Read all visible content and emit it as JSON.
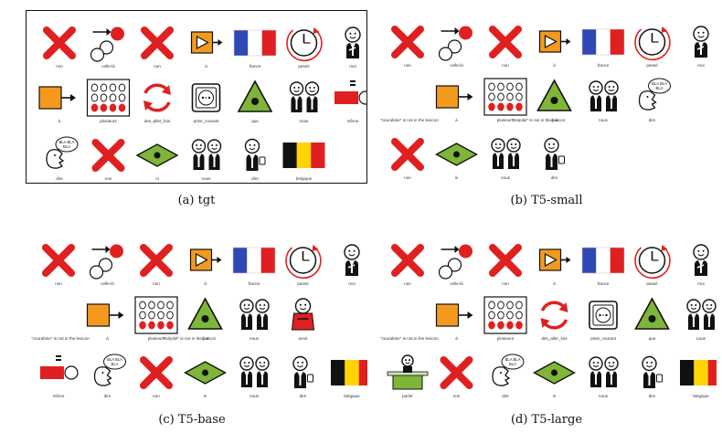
{
  "panels": [
    {
      "id": "tgt",
      "caption": "(a) tgt",
      "boxed": true,
      "rows": [
        [
          {
            "icon": "red-x-icon",
            "label": "non"
          },
          {
            "icon": "dots-arrow-icon",
            "label": "celle-là"
          },
          {
            "icon": "red-x-icon",
            "label": "non"
          },
          {
            "icon": "play-arrow-icon",
            "label": "à"
          },
          {
            "icon": "flag-france-icon",
            "label": "france"
          },
          {
            "icon": "clock-icon",
            "label": "passé"
          },
          {
            "icon": "person-icon",
            "label": "moi"
          }
        ],
        [
          {
            "icon": "orange-square-arrow-icon",
            "label": "à"
          },
          {
            "icon": "dots-grid-icon",
            "label": "plusieurs"
          },
          {
            "icon": "red-cycle-icon",
            "label": "des_aller_fois"
          },
          {
            "icon": "power-outlet-icon",
            "label": "prise_courant"
          },
          {
            "icon": "green-triangle-icon",
            "label": "que"
          },
          {
            "icon": "two-people-icon",
            "label": "nous"
          },
          {
            "icon": "equals-blocks-icon",
            "label": "même"
          }
        ],
        [
          {
            "icon": "speech-head-icon",
            "label": "dire"
          },
          {
            "icon": "red-x-icon",
            "label": "non"
          },
          {
            "icon": "green-diamond-icon",
            "label": "ni"
          },
          {
            "icon": "two-people-icon",
            "label": "nous"
          },
          {
            "icon": "person-phone-icon",
            "label": "dire"
          },
          {
            "icon": "flag-belgium-icon",
            "label": "belgique"
          }
        ]
      ],
      "notes": []
    },
    {
      "id": "t5-small",
      "caption": "(b) T5-small",
      "boxed": false,
      "rows": [
        [
          {
            "icon": "red-x-icon",
            "label": "non"
          },
          {
            "icon": "dots-arrow-icon",
            "label": "celle-là"
          },
          {
            "icon": "red-x-icon",
            "label": "non"
          },
          {
            "icon": "play-arrow-icon",
            "label": "à"
          },
          {
            "icon": "flag-france-icon",
            "label": "france"
          },
          {
            "icon": "clock-icon",
            "label": "passé"
          },
          {
            "icon": "person-icon",
            "label": "moi"
          }
        ],
        [
          {
            "icon": "orange-square-arrow-icon",
            "label": "à"
          },
          {
            "icon": "dots-grid-icon",
            "label": "plusieurs"
          },
          {
            "icon": "green-triangle-icon",
            "label": "que"
          },
          {
            "icon": "two-people-icon",
            "label": "nous"
          },
          {
            "icon": "speech-head-icon",
            "label": "dire"
          }
        ],
        [
          {
            "icon": "red-x-icon",
            "label": "non"
          },
          {
            "icon": "green-diamond-icon",
            "label": "ni"
          },
          {
            "icon": "two-people-icon",
            "label": "nous"
          },
          {
            "icon": "person-phone-icon",
            "label": "dire"
          }
        ]
      ],
      "notes": [
        "\"courabine\" is not in the lexicon",
        "\"mépitié\" is not in the lexicon"
      ]
    },
    {
      "id": "t5-base",
      "caption": "(c) T5-base",
      "boxed": false,
      "rows": [
        [
          {
            "icon": "red-x-icon",
            "label": "non"
          },
          {
            "icon": "dots-arrow-icon",
            "label": "celle-là"
          },
          {
            "icon": "red-x-icon",
            "label": "non"
          },
          {
            "icon": "play-arrow-icon",
            "label": "à"
          },
          {
            "icon": "flag-france-icon",
            "label": "france"
          },
          {
            "icon": "clock-icon",
            "label": "passé"
          },
          {
            "icon": "person-icon",
            "label": "moi"
          }
        ],
        [
          {
            "icon": "orange-square-arrow-icon",
            "label": "à"
          },
          {
            "icon": "dots-grid-icon",
            "label": "plusieurs"
          },
          {
            "icon": "green-triangle-icon",
            "label": "que"
          },
          {
            "icon": "two-people-icon",
            "label": "nous"
          },
          {
            "icon": "red-person-icon",
            "label": "avoir"
          }
        ],
        [
          {
            "icon": "equals-blocks-icon",
            "label": "même"
          },
          {
            "icon": "speech-head-icon",
            "label": "dire"
          },
          {
            "icon": "red-x-icon",
            "label": "non"
          },
          {
            "icon": "green-diamond-icon",
            "label": "ni"
          },
          {
            "icon": "two-people-icon",
            "label": "nous"
          },
          {
            "icon": "person-phone-icon",
            "label": "dire"
          },
          {
            "icon": "flag-belgium-icon",
            "label": "belgique"
          }
        ]
      ],
      "notes": [
        "\"courabine\" is not in the lexicon",
        "\"mépitié\" is not in the lexicon"
      ]
    },
    {
      "id": "t5-large",
      "caption": "(d) T5-large",
      "boxed": false,
      "rows": [
        [
          {
            "icon": "red-x-icon",
            "label": "non"
          },
          {
            "icon": "dots-arrow-icon",
            "label": "celle-là"
          },
          {
            "icon": "red-x-icon",
            "label": "non"
          },
          {
            "icon": "play-arrow-icon",
            "label": "à"
          },
          {
            "icon": "flag-france-icon",
            "label": "france"
          },
          {
            "icon": "clock-icon",
            "label": "passé"
          },
          {
            "icon": "person-icon",
            "label": "moi"
          }
        ],
        [
          {
            "icon": "orange-square-arrow-icon",
            "label": "à"
          },
          {
            "icon": "dots-grid-icon",
            "label": "plusieurs"
          },
          {
            "icon": "red-cycle-icon",
            "label": "des_aller_fois"
          },
          {
            "icon": "power-outlet-icon",
            "label": "prise_courant"
          },
          {
            "icon": "green-triangle-icon",
            "label": "que"
          },
          {
            "icon": "two-people-icon",
            "label": "nous"
          }
        ],
        [
          {
            "icon": "speaker-podium-icon",
            "label": "parler"
          },
          {
            "icon": "red-x-icon",
            "label": "non"
          },
          {
            "icon": "speech-head-icon",
            "label": "dire"
          },
          {
            "icon": "green-diamond-icon",
            "label": "ni"
          },
          {
            "icon": "two-people-icon",
            "label": "nous"
          },
          {
            "icon": "person-phone-icon",
            "label": "dire"
          },
          {
            "icon": "flag-belgium-icon",
            "label": "belgique"
          }
        ]
      ],
      "notes": [
        "\"courabine\" is not in the lexicon"
      ]
    }
  ],
  "colors": {
    "red": "#e02020",
    "orange": "#f39a1e",
    "green": "#7fb539",
    "france_blue": "#2f48b5",
    "belgium_yellow": "#ffd400",
    "border": "#111111"
  }
}
